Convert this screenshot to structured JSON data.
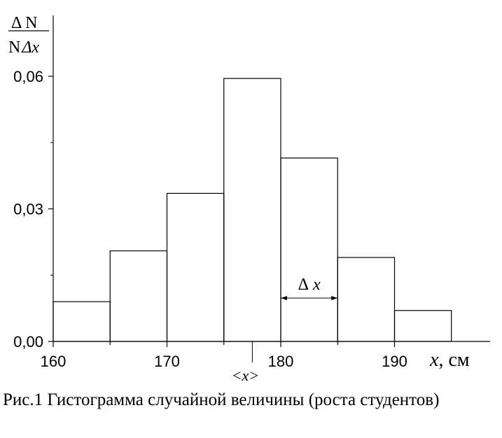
{
  "chart_data": {
    "type": "bar",
    "bin_edges": [
      160,
      165,
      170,
      175,
      180,
      185,
      190,
      195
    ],
    "values": [
      0.009,
      0.0205,
      0.0335,
      0.0595,
      0.0415,
      0.019,
      0.007
    ],
    "xlim": [
      160,
      195
    ],
    "ylim": [
      0,
      0.06
    ],
    "x_ticks": [
      "160",
      "170",
      "180",
      "190"
    ],
    "y_ticks": [
      "0,00",
      "0,03",
      "0,06"
    ],
    "ylabel": {
      "numerator": "Δ N",
      "denominator_prefix": "N",
      "denominator_dx": "Δx"
    },
    "xlabel": {
      "symbol": "x",
      "unit": ", см"
    },
    "mean_label": "<x>",
    "mean_value": 177.5,
    "delta_label": {
      "delta": "Δ",
      "x": "x"
    },
    "delta_span": [
      180,
      185
    ],
    "grid": false
  },
  "caption": "Рис.1 Гистограмма случайной величины (роста студентов)",
  "colors": {
    "line": "#000000",
    "background": "#ffffff"
  }
}
